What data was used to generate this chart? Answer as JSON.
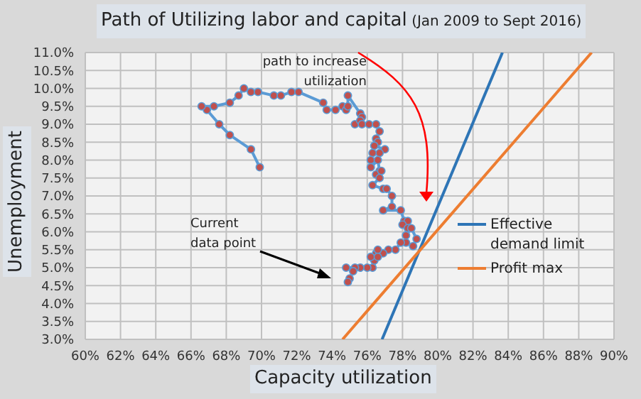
{
  "chart_data": {
    "type": "line",
    "title": "Path of Utilizing labor and capital",
    "subtitle": "(Jan 2009 to Sept 2016)",
    "xlabel": "Capacity utilization",
    "ylabel": "Unemployment",
    "xlim": [
      60,
      90
    ],
    "xticks": [
      {
        "value": 60,
        "label": "60%"
      },
      {
        "value": 62,
        "label": "62%"
      },
      {
        "value": 64,
        "label": "64%"
      },
      {
        "value": 66,
        "label": "66%"
      },
      {
        "value": 68,
        "label": "68%"
      },
      {
        "value": 70,
        "label": "70%"
      },
      {
        "value": 72,
        "label": "72%"
      },
      {
        "value": 74,
        "label": "74%"
      },
      {
        "value": 76,
        "label": "76%"
      },
      {
        "value": 78,
        "label": "78%"
      },
      {
        "value": 80,
        "label": "80%"
      },
      {
        "value": 82,
        "label": "82%"
      },
      {
        "value": 84,
        "label": "84%"
      },
      {
        "value": 86,
        "label": "86%"
      },
      {
        "value": 88,
        "label": "88%"
      },
      {
        "value": 90,
        "label": "90%"
      }
    ],
    "ylim": [
      3,
      11
    ],
    "yticks": [
      {
        "value": 3,
        "label": "3.0%"
      },
      {
        "value": 3.5,
        "label": "3.5%"
      },
      {
        "value": 4,
        "label": "4.0%"
      },
      {
        "value": 4.5,
        "label": "4.5%"
      },
      {
        "value": 5,
        "label": "5.0%"
      },
      {
        "value": 5.5,
        "label": "5.5%"
      },
      {
        "value": 6,
        "label": "6.0%"
      },
      {
        "value": 6.5,
        "label": "6.5%"
      },
      {
        "value": 7,
        "label": "7.0%"
      },
      {
        "value": 7.5,
        "label": "7.5%"
      },
      {
        "value": 8,
        "label": "8.0%"
      },
      {
        "value": 8.5,
        "label": "8.5%"
      },
      {
        "value": 9,
        "label": "9.0%"
      },
      {
        "value": 9.5,
        "label": "9.5%"
      },
      {
        "value": 10,
        "label": "10.0%"
      },
      {
        "value": 10.5,
        "label": "10.5%"
      },
      {
        "value": 11,
        "label": "11.0%"
      }
    ],
    "grid": true,
    "legend": "right",
    "marker": "circle",
    "annotations": [
      "path to increase utilization",
      "Current data point"
    ],
    "series": [
      {
        "color": "#5b9bd5",
        "x": [
          69.9,
          69.4,
          68.2,
          67.6,
          66.9,
          66.6,
          67.3,
          68.2,
          68.7,
          69.0,
          69.4,
          69.8,
          70.7,
          71.1,
          71.7,
          72.1,
          73.5,
          73.7,
          74.2,
          74.6,
          74.8,
          74.9,
          74.9,
          75.6,
          75.7,
          75.3,
          75.6,
          75.7,
          76.1,
          76.5,
          76.7,
          76.5,
          76.6,
          76.4,
          77.0,
          76.7,
          76.3,
          76.2,
          76.2,
          76.6,
          76.7,
          76.5,
          76.8,
          76.7,
          76.3,
          76.9,
          77.1,
          77.4,
          77.4,
          76.9,
          77.9,
          78.1,
          78.3,
          78.0,
          78.3,
          78.2,
          78.5,
          78.8,
          78.6,
          78.2,
          77.9,
          77.6,
          77.2,
          76.9,
          76.5,
          76.4,
          76.2,
          76.6,
          76.6,
          76.3,
          76.0,
          75.6,
          75.3,
          74.8,
          75.2,
          75.0,
          74.9
        ],
        "values": [
          7.8,
          8.3,
          8.7,
          9.0,
          9.4,
          9.5,
          9.5,
          9.6,
          9.8,
          10.0,
          9.9,
          9.9,
          9.8,
          9.8,
          9.9,
          9.9,
          9.6,
          9.4,
          9.4,
          9.5,
          9.4,
          9.5,
          9.8,
          9.3,
          9.2,
          9.0,
          9.1,
          9.0,
          9.0,
          9.0,
          8.8,
          8.6,
          8.5,
          8.4,
          8.3,
          8.2,
          8.2,
          8.0,
          7.8,
          8.0,
          7.7,
          7.6,
          7.7,
          7.5,
          7.3,
          7.2,
          7.2,
          7.0,
          6.7,
          6.6,
          6.6,
          6.3,
          6.3,
          6.2,
          6.1,
          5.9,
          6.1,
          5.8,
          5.6,
          5.7,
          5.7,
          5.5,
          5.5,
          5.4,
          5.4,
          5.2,
          5.3,
          5.5,
          5.3,
          5.0,
          5.0,
          5.0,
          5.0,
          5.0,
          4.9,
          4.7,
          4.6
        ]
      },
      {
        "name": "Effective demand limit",
        "color": "#2e75b6",
        "marker": "none",
        "x": [
          76.84,
          83.67
        ],
        "values": [
          3,
          11
        ]
      },
      {
        "name": "Profit max",
        "color": "#ed7d31",
        "marker": "none",
        "x": [
          74.6,
          88.73
        ],
        "values": [
          3,
          11
        ]
      }
    ]
  }
}
